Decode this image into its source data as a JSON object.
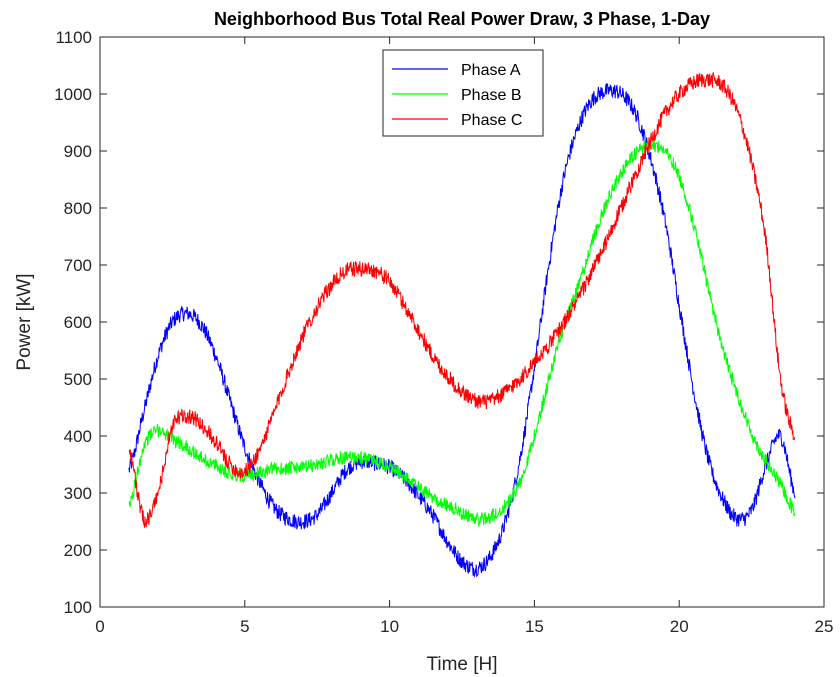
{
  "chart_data": {
    "type": "line",
    "title": "Neighborhood Bus Total Real Power Draw, 3 Phase, 1-Day",
    "xlabel": "Time [H]",
    "ylabel": "Power [kW]",
    "xlim": [
      0,
      25
    ],
    "ylim": [
      100,
      1100
    ],
    "xticks": [
      0,
      5,
      10,
      15,
      20,
      25
    ],
    "yticks": [
      100,
      200,
      300,
      400,
      500,
      600,
      700,
      800,
      900,
      1000,
      1100
    ],
    "grid": false,
    "legend_position": "top-center",
    "x": [
      1,
      1.5,
      2,
      2.5,
      3,
      3.5,
      4,
      4.5,
      5,
      5.5,
      6,
      6.5,
      7,
      7.5,
      8,
      8.5,
      9,
      9.5,
      10,
      10.5,
      11,
      11.5,
      12,
      12.5,
      13,
      13.5,
      14,
      14.5,
      15,
      15.5,
      16,
      16.5,
      17,
      17.5,
      18,
      18.5,
      19,
      19.5,
      20,
      20.5,
      21,
      21.5,
      22,
      22.5,
      23,
      23.5,
      24
    ],
    "series": [
      {
        "name": "Phase A",
        "color": "#0000ff",
        "noise": 14,
        "values": [
          340,
          440,
          540,
          600,
          615,
          595,
          540,
          460,
          380,
          320,
          275,
          255,
          250,
          262,
          300,
          340,
          355,
          352,
          345,
          325,
          295,
          260,
          215,
          180,
          168,
          190,
          250,
          360,
          520,
          700,
          850,
          940,
          990,
          1005,
          1000,
          965,
          890,
          780,
          630,
          480,
          360,
          290,
          255,
          270,
          350,
          400,
          300
        ]
      },
      {
        "name": "Phase B",
        "color": "#00ff00",
        "noise": 12,
        "values": [
          275,
          380,
          410,
          395,
          380,
          362,
          348,
          335,
          330,
          335,
          342,
          343,
          345,
          350,
          358,
          362,
          362,
          355,
          345,
          330,
          310,
          292,
          278,
          265,
          255,
          258,
          278,
          320,
          400,
          500,
          590,
          660,
          740,
          810,
          862,
          895,
          910,
          900,
          855,
          770,
          660,
          555,
          475,
          405,
          355,
          315,
          268
        ]
      },
      {
        "name": "Phase C",
        "color": "#ff0000",
        "noise": 14,
        "values": [
          380,
          255,
          300,
          415,
          435,
          420,
          388,
          350,
          338,
          375,
          440,
          510,
          575,
          625,
          665,
          690,
          693,
          690,
          670,
          630,
          585,
          540,
          505,
          478,
          462,
          462,
          478,
          500,
          530,
          560,
          598,
          640,
          690,
          742,
          800,
          860,
          915,
          965,
          1000,
          1020,
          1025,
          1015,
          970,
          880,
          740,
          500,
          400
        ]
      }
    ]
  }
}
